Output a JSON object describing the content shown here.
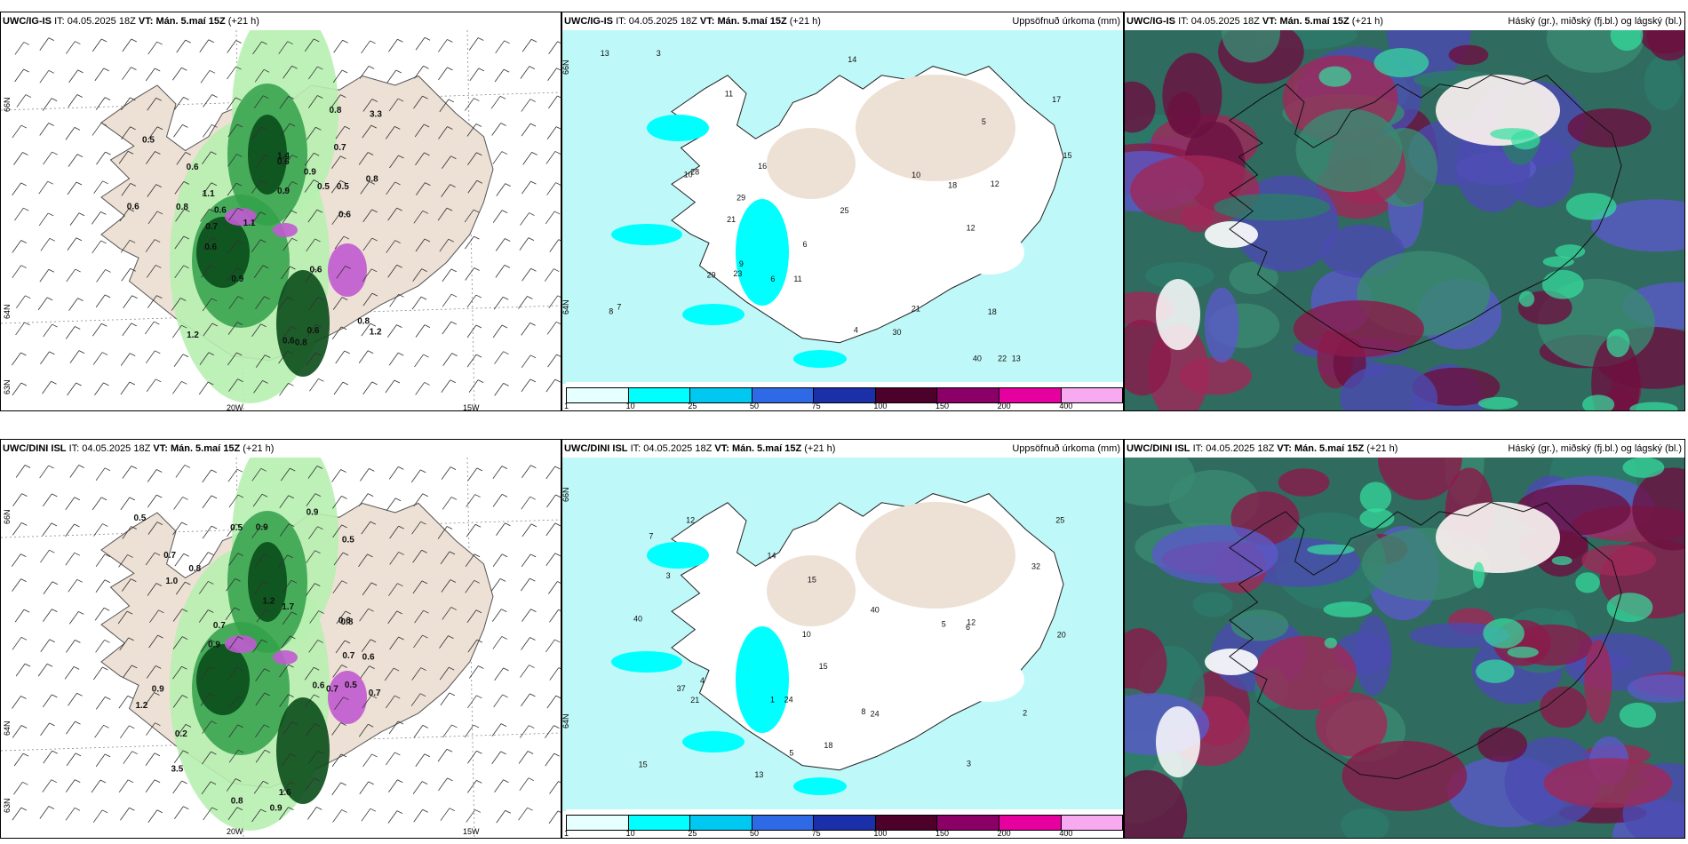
{
  "colorbar": {
    "ticks": [
      "1",
      "10",
      "25",
      "50",
      "75",
      "100",
      "150",
      "200",
      "400"
    ],
    "colors": [
      "#e6ffff",
      "#00ffff",
      "#00c8f0",
      "#2f6ae6",
      "#1a2fa8",
      "#4d0029",
      "#8b0066",
      "#e600a0",
      "#f7aaf0"
    ]
  },
  "rows": [
    {
      "model": "UWC/IG-IS",
      "it_label": "IT:",
      "it_value": "04.05.2025 18Z",
      "vt_label": "VT: Mán. 5.maí 15Z",
      "lead": "(+21 h)",
      "axis": {
        "lat66": "66N",
        "lat64": "64N",
        "lat63": "63N",
        "lon20": "20W",
        "lon15": "15W"
      },
      "wind_values": [
        "0.7",
        "0.6",
        "0.6",
        "1.2",
        "1.2",
        "0.5",
        "0.9",
        "0.8",
        "1.4",
        "0.5",
        "0.9",
        "1.1",
        "0.6",
        "0.6",
        "0.5",
        "0.6",
        "0.8",
        "0.7",
        "0.6",
        "0.8",
        "0.6",
        "0.8",
        "0.9",
        "0.6",
        "0.8",
        "0.6",
        "3.3",
        "1.1"
      ],
      "precip_values": [
        "6",
        "10",
        "3",
        "12",
        "13",
        "11",
        "11",
        "21",
        "23",
        "18",
        "12",
        "14",
        "13",
        "40",
        "29",
        "21",
        "25",
        "15",
        "17",
        "16",
        "22",
        "28",
        "30",
        "29",
        "18",
        "10",
        "4",
        "7",
        "5",
        "8",
        "9",
        "6"
      ]
    },
    {
      "model": "UWC/DINI ISL",
      "it_label": "IT:",
      "it_value": "04.05.2025 18Z",
      "vt_label": "VT: Mán. 5.maí 15Z",
      "lead": "(+21 h)",
      "axis": {
        "lat66": "66N",
        "lat64": "64N",
        "lat63": "63N",
        "lon20": "20W",
        "lon15": "15W"
      },
      "wind_values": [
        "0.9",
        "0.7",
        "0.9",
        "0.8",
        "0.6",
        "0.5",
        "0.9",
        "0.8",
        "1.2",
        "0.6",
        "0.5",
        "0.8",
        "0.7",
        "0.9",
        "0.7",
        "0.5",
        "1.2",
        "1.0",
        "0.9",
        "0.7",
        "3.5",
        "1.6",
        "1.7",
        "0.6",
        "0.5",
        "0.7",
        "0.2"
      ],
      "precip_values": [
        "5",
        "3",
        "12",
        "15",
        "18",
        "14",
        "10",
        "37",
        "24",
        "20",
        "21",
        "12",
        "13",
        "32",
        "15",
        "25",
        "24",
        "15",
        "40",
        "40",
        "8",
        "7",
        "4",
        "6",
        "1",
        "2",
        "5",
        "3"
      ]
    }
  ],
  "precip_title": "Uppsöfnuð úrkoma (mm)",
  "cloud_title": "Háský (gr.), miðský (fj.bl.) og lágský (bl.)"
}
